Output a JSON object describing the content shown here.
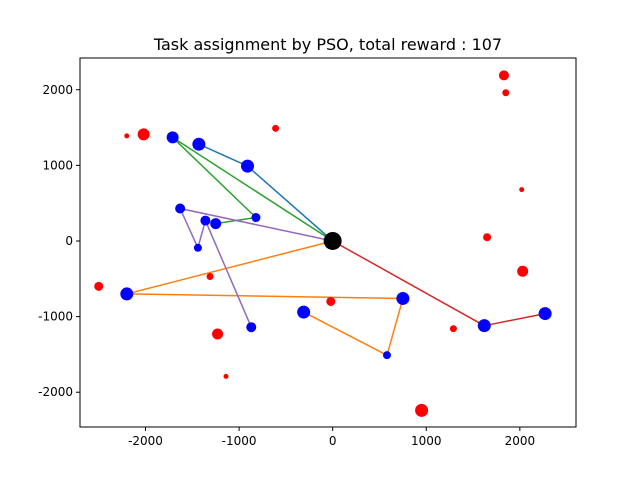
{
  "chart_data": {
    "type": "scatter",
    "title": "Task assignment by PSO, total reward : 107",
    "xlabel": "",
    "ylabel": "",
    "xlim": [
      -2700,
      2600
    ],
    "ylim": [
      -2460,
      2420
    ],
    "x_ticks": [
      -2000,
      -1000,
      0,
      1000,
      2000
    ],
    "y_ticks": [
      -2000,
      -1000,
      0,
      1000,
      2000
    ],
    "grid": false,
    "legend": "none",
    "colors": {
      "task_unassigned": "#ff0000",
      "task_assigned": "#0000ff",
      "depot": "#000000",
      "routes": [
        "#1f77b4",
        "#ff7f0e",
        "#2ca02c",
        "#d62728",
        "#9467bd"
      ]
    },
    "depot": {
      "x": 0,
      "y": 0,
      "size": 18
    },
    "unassigned_tasks": [
      {
        "x": 1830,
        "y": 2190,
        "size": 10
      },
      {
        "x": 1850,
        "y": 1960,
        "size": 7
      },
      {
        "x": -2020,
        "y": 1410,
        "size": 12
      },
      {
        "x": -2200,
        "y": 1390,
        "size": 5
      },
      {
        "x": -610,
        "y": 1490,
        "size": 7
      },
      {
        "x": 2020,
        "y": 680,
        "size": 5
      },
      {
        "x": 1650,
        "y": 50,
        "size": 8
      },
      {
        "x": 2030,
        "y": -400,
        "size": 11
      },
      {
        "x": -2500,
        "y": -600,
        "size": 9
      },
      {
        "x": -1310,
        "y": -470,
        "size": 7
      },
      {
        "x": -20,
        "y": -800,
        "size": 9
      },
      {
        "x": 1290,
        "y": -1160,
        "size": 7
      },
      {
        "x": -1230,
        "y": -1230,
        "size": 11
      },
      {
        "x": -1140,
        "y": -1790,
        "size": 5
      },
      {
        "x": 950,
        "y": -2240,
        "size": 13
      }
    ],
    "assigned_tasks": [
      {
        "x": -1710,
        "y": 1370,
        "size": 12
      },
      {
        "x": -1430,
        "y": 1280,
        "size": 13
      },
      {
        "x": -910,
        "y": 990,
        "size": 13
      },
      {
        "x": -1630,
        "y": 430,
        "size": 10
      },
      {
        "x": -1360,
        "y": 270,
        "size": 10
      },
      {
        "x": -1250,
        "y": 230,
        "size": 11
      },
      {
        "x": -820,
        "y": 310,
        "size": 9
      },
      {
        "x": -1440,
        "y": -90,
        "size": 8
      },
      {
        "x": -2200,
        "y": -700,
        "size": 13
      },
      {
        "x": -870,
        "y": -1140,
        "size": 10
      },
      {
        "x": -310,
        "y": -940,
        "size": 13
      },
      {
        "x": 750,
        "y": -760,
        "size": 13
      },
      {
        "x": 580,
        "y": -1510,
        "size": 8
      },
      {
        "x": 1620,
        "y": -1120,
        "size": 13
      },
      {
        "x": 2270,
        "y": -960,
        "size": 13
      }
    ],
    "routes": [
      {
        "points": [
          [
            0,
            0
          ],
          [
            -910,
            990
          ],
          [
            -1430,
            1280
          ]
        ]
      },
      {
        "points": [
          [
            0,
            0
          ],
          [
            -2200,
            -700
          ],
          [
            750,
            -760
          ],
          [
            580,
            -1510
          ],
          [
            -310,
            -940
          ]
        ]
      },
      {
        "points": [
          [
            0,
            0
          ],
          [
            -1710,
            1370
          ],
          [
            -820,
            310
          ],
          [
            -1250,
            230
          ]
        ]
      },
      {
        "points": [
          [
            0,
            0
          ],
          [
            1620,
            -1120
          ],
          [
            2270,
            -960
          ]
        ]
      },
      {
        "points": [
          [
            0,
            0
          ],
          [
            -1630,
            430
          ],
          [
            -1440,
            -90
          ],
          [
            -1360,
            270
          ],
          [
            -870,
            -1140
          ]
        ]
      }
    ]
  }
}
